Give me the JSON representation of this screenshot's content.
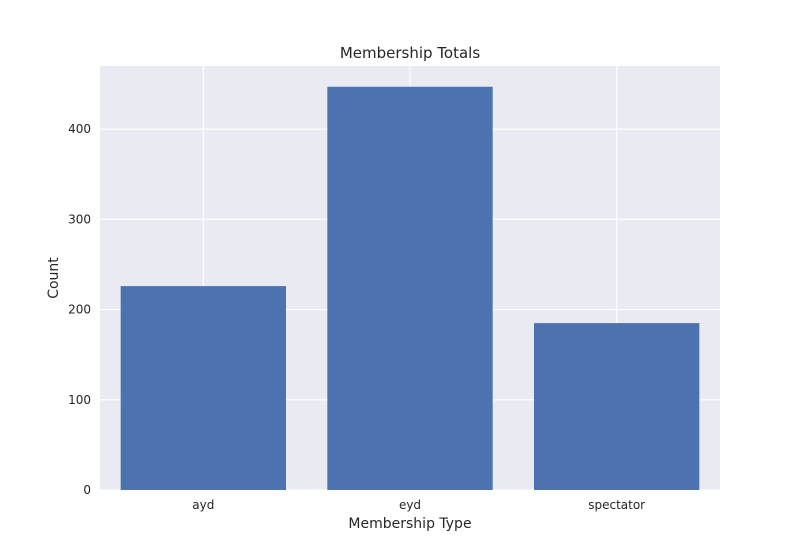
{
  "chart_data": {
    "type": "bar",
    "title": "Membership Totals",
    "xlabel": "Membership Type",
    "ylabel": "Count",
    "categories": [
      "ayd",
      "eyd",
      "spectator"
    ],
    "values": [
      226,
      447,
      185
    ],
    "ylim": [
      0,
      470
    ],
    "yticks": [
      0,
      100,
      200,
      300,
      400
    ],
    "grid": true,
    "colors": {
      "bar": "#4c72b0",
      "plot_background": "#eaeaf2",
      "grid": "#ffffff"
    }
  }
}
